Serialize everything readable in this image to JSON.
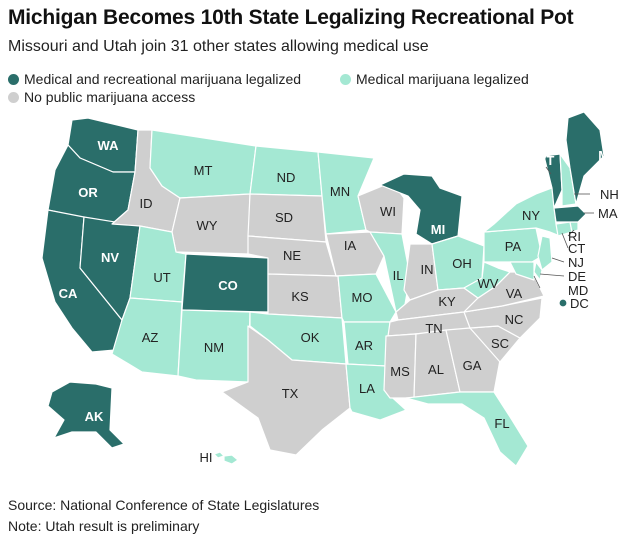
{
  "title": "Michigan Becomes 10th State Legalizing Recreational Pot",
  "subtitle": "Missouri and Utah join 31 other states allowing medical use",
  "legend": [
    {
      "key": "rec",
      "label": "Medical and recreational marijuana legalized",
      "color": "#2a6e6a"
    },
    {
      "key": "med",
      "label": "Medical marijuana legalized",
      "color": "#a4e8d3"
    },
    {
      "key": "none",
      "label": "No public marijuana access",
      "color": "#cfcfcf"
    }
  ],
  "states": {
    "WA": "rec",
    "OR": "rec",
    "CA": "rec",
    "NV": "rec",
    "CO": "rec",
    "AK": "rec",
    "MI": "rec",
    "VT": "rec",
    "ME": "rec",
    "MA": "rec",
    "DC": "rec",
    "MT": "med",
    "ND": "med",
    "MN": "med",
    "UT": "med",
    "AZ": "med",
    "NM": "med",
    "OK": "med",
    "AR": "med",
    "LA": "med",
    "FL": "med",
    "MO": "med",
    "IL": "med",
    "OH": "med",
    "WV": "med",
    "PA": "med",
    "NY": "med",
    "NH": "med",
    "RI": "med",
    "CT": "med",
    "NJ": "med",
    "DE": "med",
    "MD": "med",
    "HI": "med",
    "ID": "none",
    "WY": "none",
    "SD": "none",
    "NE": "none",
    "KS": "none",
    "IA": "none",
    "WI": "none",
    "IN": "none",
    "KY": "none",
    "TN": "none",
    "MS": "none",
    "AL": "none",
    "GA": "none",
    "SC": "none",
    "NC": "none",
    "VA": "none",
    "TX": "none"
  },
  "source": "Source: National Conference of State Legislatures",
  "note": "Note: Utah result is preliminary"
}
